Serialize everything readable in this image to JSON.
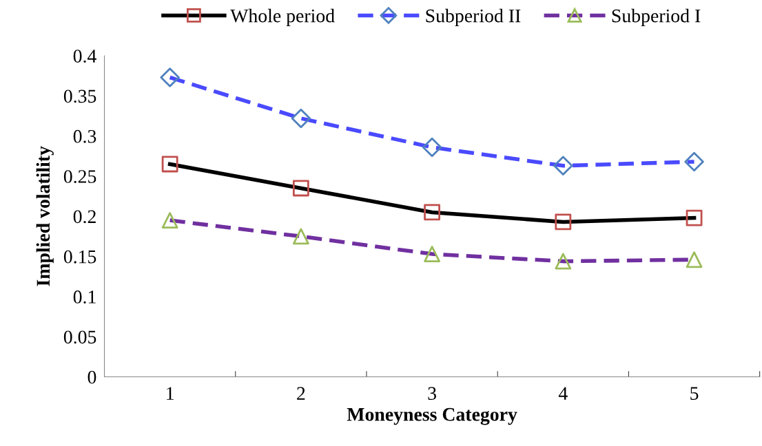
{
  "chart_data": {
    "type": "line",
    "xlabel": "Moneyness Category",
    "ylabel": "Implied volatility",
    "categories": [
      "1",
      "2",
      "3",
      "4",
      "5"
    ],
    "series": [
      {
        "name": "Whole period",
        "color": "#000000",
        "colors": [
          "#c0504d",
          "#c0504d",
          "#c0504d",
          "#c0504d",
          "#c0504d"
        ],
        "marker": "square",
        "line_style": "solid",
        "values": [
          0.265,
          0.235,
          0.205,
          0.193,
          0.198
        ]
      },
      {
        "name": "Subperiod II",
        "color": "#4a4aff",
        "colors": [
          "#4f81bd",
          "#4f81bd",
          "#4f81bd",
          "#4f81bd",
          "#4f81bd"
        ],
        "marker": "diamond",
        "line_style": "dashed",
        "values": [
          0.373,
          0.322,
          0.286,
          0.263,
          0.268
        ]
      },
      {
        "name": "Subperiod I",
        "color": "#7030a0",
        "colors": [
          "#9bbb59",
          "#9bbb59",
          "#9bbb59",
          "#9bbb59",
          "#9bbb59"
        ],
        "marker": "triangle",
        "line_style": "dashed",
        "values": [
          0.195,
          0.175,
          0.153,
          0.144,
          0.146
        ]
      }
    ],
    "ylim": [
      0,
      0.4
    ],
    "yticks": [
      0,
      0.05,
      0.1,
      0.15,
      0.2,
      0.25,
      0.3,
      0.35,
      0.4
    ],
    "grid": false,
    "legend": "top"
  }
}
